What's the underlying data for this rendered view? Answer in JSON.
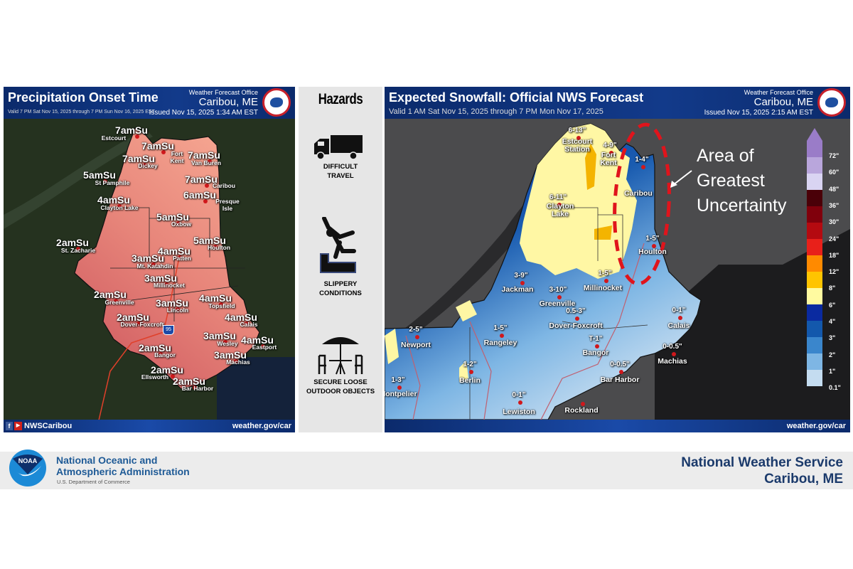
{
  "left_panel": {
    "title": "Precipitation Onset Time",
    "valid": "Valid 7 PM Sat Nov 15, 2025 through 7 PM Sun Nov 16, 2025 EST",
    "office_label": "Weather Forecast Office",
    "office_city": "Caribou, ME",
    "issued": "Issued Nov 15, 2025 1:34 AM EST",
    "social_handle": "NWSCaribou",
    "website": "weather.gov/car",
    "highway_shield": "95",
    "onset_points": [
      {
        "time": "7amSu",
        "place": "Estcourt"
      },
      {
        "time": "7amSu",
        "place": "Fort Kent"
      },
      {
        "time": "7amSu",
        "place": "Dickey"
      },
      {
        "time": "7amSu",
        "place": "Van Buren"
      },
      {
        "time": "5amSu",
        "place": "St Pamphile"
      },
      {
        "time": "7amSu",
        "place": "Caribou"
      },
      {
        "time": "6amSu",
        "place": "Presque Isle"
      },
      {
        "time": "4amSu",
        "place": "Clayton Lake"
      },
      {
        "time": "5amSu",
        "place": "Oxbow"
      },
      {
        "time": "2amSu",
        "place": "St. Zacharie"
      },
      {
        "time": "5amSu",
        "place": "Houlton"
      },
      {
        "time": "4amSu",
        "place": "Patten"
      },
      {
        "time": "3amSu",
        "place": "Mt. Katahdin"
      },
      {
        "time": "3amSu",
        "place": "Millinocket"
      },
      {
        "time": "2amSu",
        "place": "Greenville"
      },
      {
        "time": "3amSu",
        "place": "Lincoln"
      },
      {
        "time": "4amSu",
        "place": "Topsfield"
      },
      {
        "time": "2amSu",
        "place": "Dover-Foxcroft"
      },
      {
        "time": "4amSu",
        "place": "Calais"
      },
      {
        "time": "3amSu",
        "place": "Wesley"
      },
      {
        "time": "4amSu",
        "place": "Eastport"
      },
      {
        "time": "2amSu",
        "place": "Bangor"
      },
      {
        "time": "3amSu",
        "place": "Machias"
      },
      {
        "time": "2amSu",
        "place": "Ellsworth"
      },
      {
        "time": "2amSu",
        "place": "Bar Harbor"
      }
    ]
  },
  "hazards": {
    "title": "Hazards",
    "items": [
      {
        "icon": "truck-icon",
        "line1": "DIFFICULT",
        "line2": "TRAVEL"
      },
      {
        "icon": "slipping-person-icon",
        "line1": "SLIPPERY",
        "line2": "CONDITIONS"
      },
      {
        "icon": "patio-umbrella-icon",
        "line1": "SECURE LOOSE",
        "line2": "OUTDOOR OBJECTS"
      }
    ]
  },
  "right_panel": {
    "title": "Expected Snowfall: Official NWS Forecast",
    "valid": "Valid 1 AM Sat Nov 15, 2025 through 7 PM Mon Nov 17, 2025",
    "office_label": "Weather Forecast Office",
    "office_city": "Caribou, ME",
    "issued": "Issued Nov 15, 2025 2:15 AM EST",
    "website": "weather.gov/car",
    "annotation": {
      "line1": "Area of",
      "line2": "Greatest",
      "line3": "Uncertainty"
    },
    "snow_points": [
      {
        "value": "6-13\"",
        "place": "Estcourt Station"
      },
      {
        "value": "4-9\"",
        "place": "Fort Kent"
      },
      {
        "value": "1-4\"",
        "place": "Caribou"
      },
      {
        "value": "6-11\"",
        "place": "Clayton Lake"
      },
      {
        "value": "1-5\"",
        "place": "Houlton"
      },
      {
        "value": "3-9\"",
        "place": "Jackman"
      },
      {
        "value": "1-5\"",
        "place": "Millinocket"
      },
      {
        "value": "3-10\"",
        "place": "Greenville"
      },
      {
        "value": "0.5-3\"",
        "place": "Dover-Foxcroft"
      },
      {
        "value": "0-1\"",
        "place": "Calais"
      },
      {
        "value": "2-5\"",
        "place": "Newport"
      },
      {
        "value": "1-5\"",
        "place": "Rangeley"
      },
      {
        "value": "T-1\"",
        "place": "Bangor"
      },
      {
        "value": "0-0.5\"",
        "place": "Machias"
      },
      {
        "value": "1-2\"",
        "place": "Berlin"
      },
      {
        "value": "0-0.5\"",
        "place": "Bar Harbor"
      },
      {
        "value": "1-3\"",
        "place": "Montpelier"
      },
      {
        "value": "0-1\"",
        "place": "Lewiston"
      },
      {
        "value": "",
        "place": "Rockland"
      }
    ],
    "legend": [
      {
        "label": "72\"",
        "color": "#9a7cc8"
      },
      {
        "label": "60\"",
        "color": "#b9a6dc"
      },
      {
        "label": "48\"",
        "color": "#d9d4f2"
      },
      {
        "label": "36\"",
        "color": "#4a0008"
      },
      {
        "label": "30\"",
        "color": "#80000c"
      },
      {
        "label": "24\"",
        "color": "#b40a10"
      },
      {
        "label": "18\"",
        "color": "#e8201a"
      },
      {
        "label": "12\"",
        "color": "#ff8a00"
      },
      {
        "label": "8\"",
        "color": "#ffc400"
      },
      {
        "label": "6\"",
        "color": "#fffaa0"
      },
      {
        "label": "4\"",
        "color": "#0a2aa0"
      },
      {
        "label": "3\"",
        "color": "#1358ac"
      },
      {
        "label": "2\"",
        "color": "#3a86cc"
      },
      {
        "label": "1\"",
        "color": "#7eb6e4"
      },
      {
        "label": "0.1\"",
        "color": "#c4dcf0"
      }
    ]
  },
  "footer": {
    "noaa_logo_text": "NOAA",
    "agency_line1": "National Oceanic and",
    "agency_line2": "Atmospheric Administration",
    "department": "U.S. Department of Commerce",
    "nws_line1": "National Weather Service",
    "nws_line2": "Caribou, ME"
  },
  "colors": {
    "header_blue": "#0b2a6b",
    "uncertainty_red": "#e0141c",
    "footer_text_blue": "#1b3a6b"
  }
}
